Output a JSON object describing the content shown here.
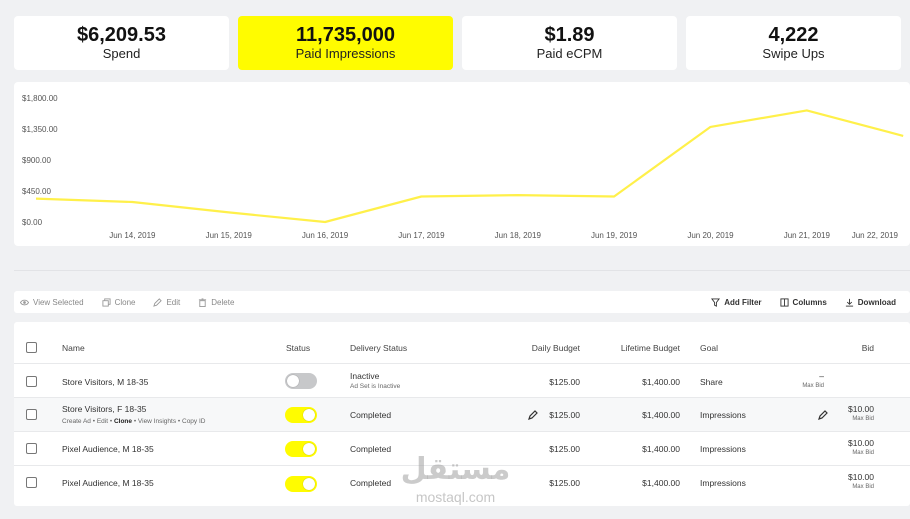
{
  "kpis": [
    {
      "value": "$6,209.53",
      "label": "Spend",
      "active": false
    },
    {
      "value": "11,735,000",
      "label": "Paid Impressions",
      "active": true
    },
    {
      "value": "$1.89",
      "label": "Paid eCPM",
      "active": false
    },
    {
      "value": "4,222",
      "label": "Swipe Ups",
      "active": false
    }
  ],
  "chart_data": {
    "type": "line",
    "title": "",
    "xlabel": "",
    "ylabel": "",
    "y_tick_labels": [
      "$1,800.00",
      "$1,350.00",
      "$900.00",
      "$450.00",
      "$0.00"
    ],
    "y_ticks": [
      1800,
      1350,
      900,
      450,
      0
    ],
    "x": [
      "Jun 14, 2019",
      "Jun 15, 2019",
      "Jun 16, 2019",
      "Jun 17, 2019",
      "Jun 18, 2019",
      "Jun 19, 2019",
      "Jun 20, 2019",
      "Jun 21, 2019",
      "Jun 22, 2019"
    ],
    "ylim": [
      0,
      1800
    ],
    "grid": false,
    "legend": "none",
    "series": [
      {
        "color": "#fff04a",
        "points": [
          {
            "x": "Jun 13, 2019",
            "y": 340
          },
          {
            "x": "Jun 14, 2019",
            "y": 290
          },
          {
            "x": "Jun 15, 2019",
            "y": 140
          },
          {
            "x": "Jun 16, 2019",
            "y": 0
          },
          {
            "x": "Jun 17, 2019",
            "y": 370
          },
          {
            "x": "Jun 18, 2019",
            "y": 390
          },
          {
            "x": "Jun 19, 2019",
            "y": 370
          },
          {
            "x": "Jun 20, 2019",
            "y": 1380
          },
          {
            "x": "Jun 21, 2019",
            "y": 1620
          },
          {
            "x": "Jun 22, 2019",
            "y": 1250
          }
        ]
      }
    ]
  },
  "toolbar": {
    "view_selected": "View Selected",
    "clone": "Clone",
    "edit": "Edit",
    "delete": "Delete",
    "add_filter": "Add Filter",
    "columns": "Columns",
    "download": "Download"
  },
  "table": {
    "headers": {
      "name": "Name",
      "status": "Status",
      "delivery_status": "Delivery Status",
      "daily_budget": "Daily Budget",
      "lifetime_budget": "Lifetime Budget",
      "goal": "Goal",
      "bid": "Bid"
    },
    "rows": [
      {
        "name": "Store Visitors, M 18-35",
        "status_on": false,
        "delivery": "Inactive",
        "delivery_sub": "Ad Set is Inactive",
        "daily": "$125.00",
        "lifetime": "$1,400.00",
        "goal": "Share",
        "bid": "–",
        "bid_sub": "Max Bid"
      },
      {
        "name": "Store Visitors, F 18-35",
        "status_on": true,
        "delivery": "Completed",
        "delivery_sub": "",
        "daily": "$125.00",
        "lifetime": "$1,400.00",
        "goal": "Impressions",
        "bid": "$10.00",
        "bid_sub": "Max Bid"
      },
      {
        "name": "Pixel Audience, M 18-35",
        "status_on": true,
        "delivery": "Completed",
        "delivery_sub": "",
        "daily": "$125.00",
        "lifetime": "$1,400.00",
        "goal": "Impressions",
        "bid": "$10.00",
        "bid_sub": "Max Bid"
      },
      {
        "name": "Pixel Audience, M 18-35",
        "status_on": true,
        "delivery": "Completed",
        "delivery_sub": "",
        "daily": "$125.00",
        "lifetime": "$1,400.00",
        "goal": "Impressions",
        "bid": "$10.00",
        "bid_sub": "Max Bid"
      }
    ],
    "row_actions": {
      "create_ad": "Create Ad",
      "edit": "Edit",
      "clone": "Clone",
      "view_insights": "View Insights",
      "copy_id": "Copy ID",
      "separator": "•"
    }
  },
  "watermark": {
    "arabic": "مستقل",
    "latin": "mostaql.com"
  },
  "colors": {
    "accent": "#fffc00",
    "line": "#fff04a",
    "toggle_off": "#c7c8ca"
  }
}
